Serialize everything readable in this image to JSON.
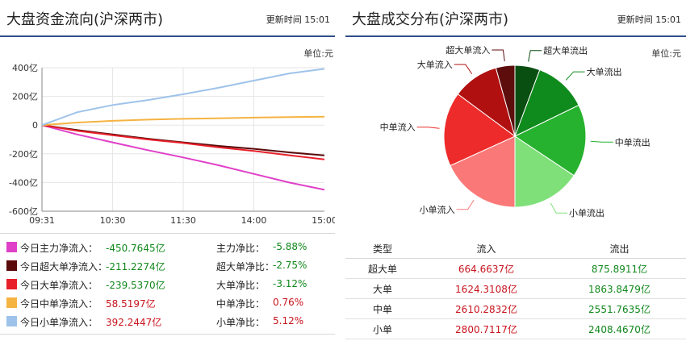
{
  "left": {
    "title": "大盘资金流向(沪深两市)",
    "updated": "更新时间 15:01",
    "unit": "单位:元",
    "legend": [
      {
        "name": "今日主力净流入：",
        "value": "-450.7645亿",
        "ratio_label": "主力净比：",
        "ratio": "-5.88%",
        "color": "#e040c8",
        "sign": "neg"
      },
      {
        "name": "今日超大单净流入：",
        "value": "-211.2274亿",
        "ratio_label": "超大单净比：",
        "ratio": "-2.75%",
        "color": "#5a0a0a",
        "sign": "neg"
      },
      {
        "name": "今日大单净流入：",
        "value": "-239.5370亿",
        "ratio_label": "大单净比：",
        "ratio": "-3.12%",
        "color": "#e8202a",
        "sign": "neg"
      },
      {
        "name": "今日中单净流入：",
        "value": "58.5197亿",
        "ratio_label": "中单净比：",
        "ratio": "0.76%",
        "color": "#f5b342",
        "sign": "pos"
      },
      {
        "name": "今日小单净流入：",
        "value": "392.2447亿",
        "ratio_label": "小单净比：",
        "ratio": "5.12%",
        "color": "#9ec3ea",
        "sign": "pos"
      }
    ]
  },
  "right": {
    "title": "大盘成交分布(沪深两市)",
    "updated": "更新时间 15:01",
    "unit": "单位:元",
    "table": {
      "headers": [
        "类型",
        "流入",
        "流出"
      ],
      "rows": [
        {
          "type": "超大单",
          "in": "664.6637亿",
          "out": "875.8911亿"
        },
        {
          "type": "大单",
          "in": "1624.3108亿",
          "out": "1863.8479亿"
        },
        {
          "type": "中单",
          "in": "2610.2832亿",
          "out": "2551.7635亿"
        },
        {
          "type": "小单",
          "in": "2800.7117亿",
          "out": "2408.4670亿"
        }
      ]
    }
  },
  "chart_data": [
    {
      "type": "line",
      "x_ticks": [
        "09:31",
        "10:30",
        "11:30",
        "14:00",
        "15:00"
      ],
      "y_ticks": [
        "400亿",
        "200亿",
        "0",
        "-200亿",
        "-400亿",
        "-600亿"
      ],
      "ylim": [
        -600,
        400
      ],
      "unit": "亿",
      "series": [
        {
          "name": "今日主力净流入",
          "color": "#e040c8",
          "values": [
            0,
            -65,
            -120,
            -175,
            -225,
            -280,
            -340,
            -400,
            -450.76
          ]
        },
        {
          "name": "今日超大单净流入",
          "color": "#5a0a0a",
          "values": [
            0,
            -35,
            -65,
            -95,
            -120,
            -145,
            -165,
            -190,
            -211.23
          ]
        },
        {
          "name": "今日大单净流入",
          "color": "#e8202a",
          "values": [
            0,
            -40,
            -70,
            -100,
            -125,
            -155,
            -180,
            -210,
            -239.54
          ]
        },
        {
          "name": "今日中单净流入",
          "color": "#f5b342",
          "values": [
            0,
            18,
            30,
            38,
            44,
            48,
            52,
            56,
            58.52
          ]
        },
        {
          "name": "今日小单净流入",
          "color": "#9ec3ea",
          "values": [
            0,
            90,
            140,
            175,
            215,
            260,
            310,
            360,
            392.24
          ]
        }
      ]
    },
    {
      "type": "pie",
      "categories": [
        "超大单流入",
        "大单流入",
        "中单流入",
        "小单流入",
        "超大单流出",
        "大单流出",
        "中单流出",
        "小单流出"
      ],
      "values": [
        664.6637,
        1624.3108,
        2610.2832,
        2800.7117,
        875.8911,
        1863.8479,
        2551.7635,
        2408.467
      ],
      "colors": [
        "#5e0d0d",
        "#b01010",
        "#ee2b2b",
        "#fa7878",
        "#0a4f12",
        "#0f8a1c",
        "#26b12e",
        "#7fe07a"
      ]
    }
  ]
}
